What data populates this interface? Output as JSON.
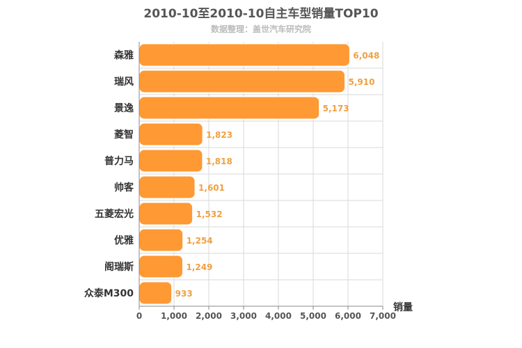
{
  "chart_data": {
    "type": "bar",
    "orientation": "horizontal",
    "title": "2010-10至2010-10自主车型销量TOP10",
    "subtitle": "数据整理：盖世汽车研究院",
    "xlabel": "销量",
    "ylabel": "",
    "categories": [
      "森雅",
      "瑞风",
      "景逸",
      "菱智",
      "普力马",
      "帅客",
      "五菱宏光",
      "优雅",
      "阁瑞斯",
      "众泰M300"
    ],
    "values": [
      6048,
      5910,
      5173,
      1823,
      1818,
      1601,
      1532,
      1254,
      1249,
      933
    ],
    "value_labels": [
      "6,048",
      "5,910",
      "5,173",
      "1,823",
      "1,818",
      "1,601",
      "1,532",
      "1,254",
      "1,249",
      "933"
    ],
    "xlim": [
      0,
      7000
    ],
    "xticks": [
      0,
      1000,
      2000,
      3000,
      4000,
      5000,
      6000,
      7000
    ],
    "xtick_labels": [
      "0",
      "1,000",
      "2,000",
      "3,000",
      "4,000",
      "5,000",
      "6,000",
      "7,000"
    ],
    "grid": true,
    "colors": {
      "bar": "#ff9933",
      "bar_edge": "#ffffff",
      "value_label": "#f0a040",
      "grid": "#d8d8d8",
      "axis": "#888888",
      "text": "#333333"
    }
  }
}
